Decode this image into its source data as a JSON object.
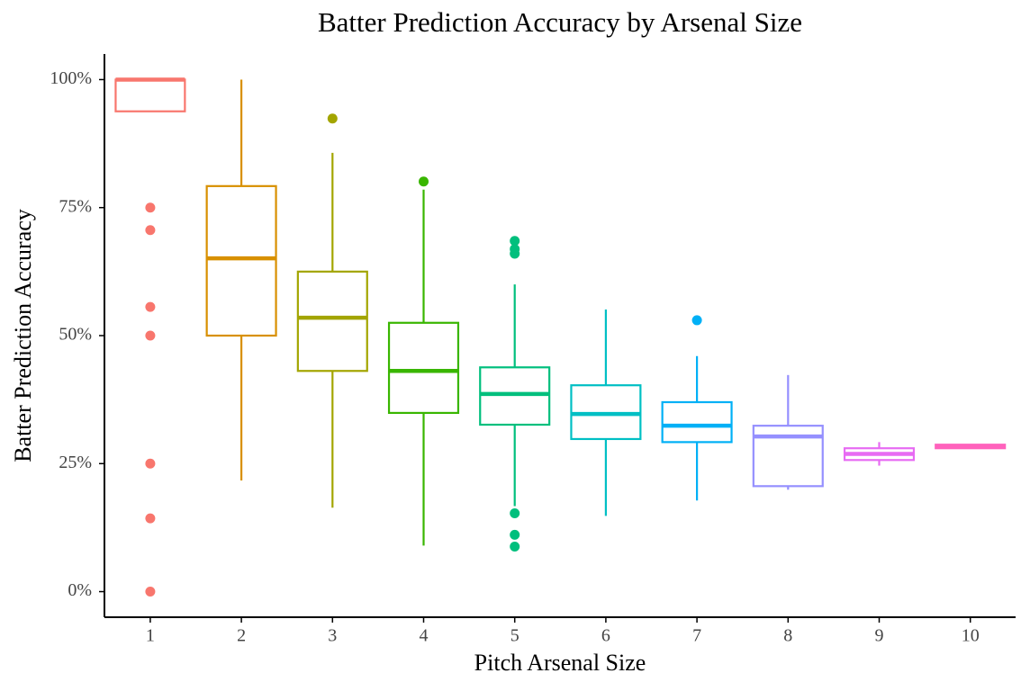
{
  "chart_data": {
    "type": "box",
    "title": "Batter Prediction Accuracy by Arsenal Size",
    "x_label": "Pitch Arsenal Size",
    "y_label": "Batter Prediction Accuracy",
    "categories": [
      "1",
      "2",
      "3",
      "4",
      "5",
      "6",
      "7",
      "8",
      "9",
      "10"
    ],
    "colors": [
      "#F8766D",
      "#D89000",
      "#A3A500",
      "#39B600",
      "#00BF7D",
      "#00BFC4",
      "#00B0F6",
      "#9590FF",
      "#E76BF3",
      "#FF62BC"
    ],
    "boxes": [
      {
        "low": 93.8,
        "q1": 93.8,
        "median": 100,
        "q3": 100,
        "high": 100,
        "outliers": [
          75,
          70.6,
          55.6,
          50,
          25,
          14.3,
          0
        ]
      },
      {
        "low": 21.7,
        "q1": 50,
        "median": 65.1,
        "q3": 79.2,
        "high": 100,
        "outliers": []
      },
      {
        "low": 16.4,
        "q1": 43.1,
        "median": 53.5,
        "q3": 62.5,
        "high": 85.7,
        "outliers": [
          92.4
        ]
      },
      {
        "low": 9.0,
        "q1": 34.9,
        "median": 43.1,
        "q3": 52.5,
        "high": 78.5,
        "outliers": [
          80.1
        ]
      },
      {
        "low": 16.7,
        "q1": 32.6,
        "median": 38.6,
        "q3": 43.8,
        "high": 60.0,
        "outliers": [
          68.5,
          66.9,
          66.0,
          15.3,
          11.1,
          8.8
        ]
      },
      {
        "low": 14.8,
        "q1": 29.8,
        "median": 34.7,
        "q3": 40.3,
        "high": 55.1,
        "outliers": []
      },
      {
        "low": 17.8,
        "q1": 29.2,
        "median": 32.4,
        "q3": 37.0,
        "high": 46.0,
        "outliers": [
          53.0
        ]
      },
      {
        "low": 19.9,
        "q1": 20.6,
        "median": 30.3,
        "q3": 32.4,
        "high": 42.3,
        "outliers": []
      },
      {
        "low": 24.6,
        "q1": 25.7,
        "median": 26.9,
        "q3": 28.0,
        "high": 29.2,
        "outliers": []
      },
      {
        "low": 28.0,
        "q1": 28.0,
        "median": 28.3,
        "q3": 28.7,
        "high": 28.7,
        "outliers": []
      }
    ],
    "ylim": [
      -5,
      105
    ],
    "yticks": [
      {
        "value": 0,
        "label": "0%"
      },
      {
        "value": 25,
        "label": "25%"
      },
      {
        "value": 50,
        "label": "50%"
      },
      {
        "value": 75,
        "label": "75%"
      },
      {
        "value": 100,
        "label": "100%"
      }
    ],
    "grid": false
  }
}
